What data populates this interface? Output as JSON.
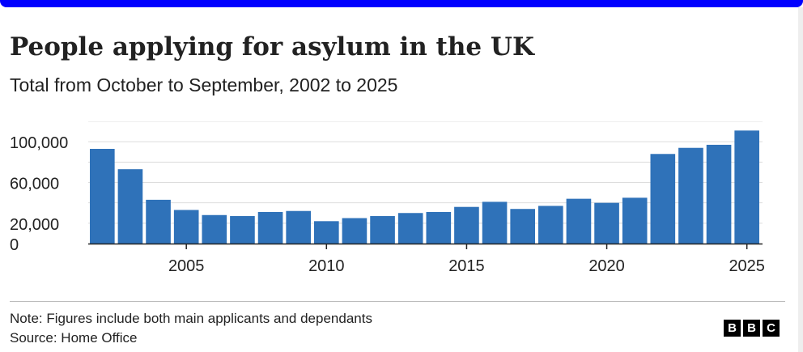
{
  "header": {
    "title": "People applying for asylum in the UK",
    "subtitle": "Total from October to September, 2002 to 2025"
  },
  "footer": {
    "note": "Note: Figures include both main applicants and dependants",
    "source": "Source: Home Office",
    "logo_letters": [
      "B",
      "B",
      "C"
    ]
  },
  "colors": {
    "bar": "#2f72b9",
    "top_bar": "#0000ff",
    "grid": "#dddddd",
    "axis": "#222222"
  },
  "chart_data": {
    "type": "bar",
    "x": [
      2002,
      2003,
      2004,
      2005,
      2006,
      2007,
      2008,
      2009,
      2010,
      2011,
      2012,
      2013,
      2014,
      2015,
      2016,
      2017,
      2018,
      2019,
      2020,
      2021,
      2022,
      2023,
      2024,
      2025
    ],
    "values": [
      93000,
      73000,
      43000,
      33000,
      28000,
      27000,
      31000,
      32000,
      22000,
      25000,
      27000,
      30000,
      31000,
      36000,
      41000,
      34000,
      37000,
      44000,
      40000,
      45000,
      88000,
      94000,
      97000,
      111000
    ],
    "yticks": [
      0,
      20000,
      60000,
      100000
    ],
    "ytick_labels": [
      "0",
      "20,000",
      "60,000",
      "100,000"
    ],
    "xticks": [
      2005,
      2010,
      2015,
      2020,
      2025
    ],
    "xtick_labels": [
      "2005",
      "2010",
      "2015",
      "2020",
      "2025"
    ],
    "ylim": [
      0,
      120000
    ],
    "grid": true,
    "xlabel": "",
    "ylabel": ""
  }
}
